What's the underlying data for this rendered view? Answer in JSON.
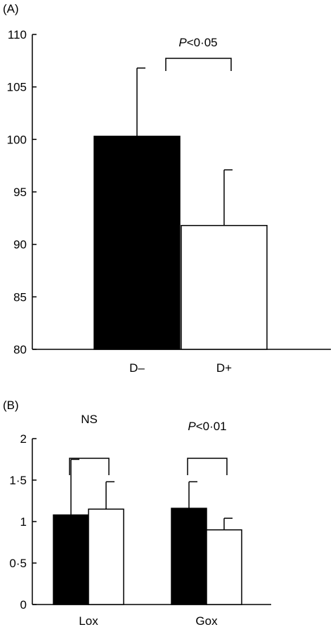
{
  "chart_data": [
    {
      "panel_label": "(A)",
      "type": "bar",
      "categories": [
        "D–",
        "D+"
      ],
      "series": [
        {
          "values": [
            100.3,
            91.8
          ],
          "errors": [
            6.5,
            5.3
          ],
          "colors": [
            "#000000",
            "#ffffff"
          ]
        }
      ],
      "ylim": [
        80,
        110
      ],
      "yticks": [
        80,
        85,
        90,
        95,
        100,
        105,
        110
      ],
      "ytick_labels": [
        "80",
        "85",
        "90",
        "95",
        "100",
        "105",
        "110"
      ],
      "significance": {
        "italic": "P",
        "text": "<0·05"
      },
      "grid": false
    },
    {
      "panel_label": "(B)",
      "type": "bar",
      "categories": [
        "Lox",
        "Gox"
      ],
      "series": [
        {
          "values": [
            1.08,
            1.16
          ],
          "errors": [
            0.67,
            0.32
          ],
          "color": "#000000"
        },
        {
          "values": [
            1.15,
            0.9
          ],
          "errors": [
            0.33,
            0.14
          ],
          "color": "#ffffff"
        }
      ],
      "ylim": [
        0,
        2
      ],
      "yticks": [
        0,
        0.5,
        1,
        1.5,
        2
      ],
      "ytick_labels": [
        "0",
        "0·5",
        "1",
        "1·5",
        "2"
      ],
      "significance": [
        {
          "italic": "",
          "text": "NS"
        },
        {
          "italic": "P",
          "text": "<0·01"
        }
      ],
      "grid": false
    }
  ]
}
